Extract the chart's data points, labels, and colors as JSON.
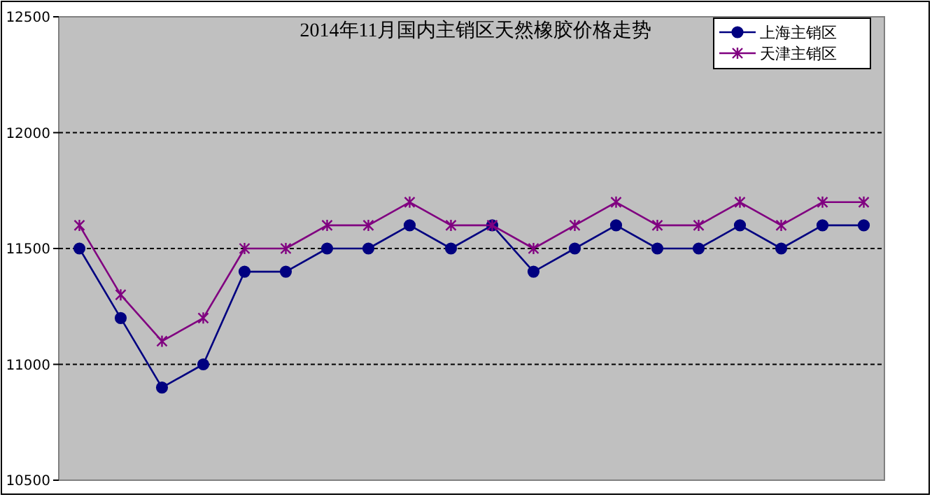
{
  "chart_data": {
    "type": "line",
    "title": "2014年11月国内主销区天然橡胶价格走势",
    "categories": [
      null,
      null,
      null,
      null,
      null,
      null,
      null,
      null,
      null,
      null,
      null,
      null,
      null,
      null,
      null,
      null,
      null,
      null,
      null,
      null
    ],
    "series": [
      {
        "name": "上海主销区",
        "color": "#000080",
        "marker": "circle",
        "values": [
          11500,
          11200,
          10900,
          11000,
          11400,
          11400,
          11500,
          11500,
          11600,
          11500,
          11600,
          11400,
          11500,
          11600,
          11500,
          11500,
          11600,
          11500,
          11600,
          11600
        ]
      },
      {
        "name": "天津主销区",
        "color": "#800080",
        "marker": "cross",
        "values": [
          11600,
          11300,
          11100,
          11200,
          11500,
          11500,
          11600,
          11600,
          11700,
          11600,
          11600,
          11500,
          11600,
          11700,
          11600,
          11600,
          11700,
          11600,
          11700,
          11700
        ]
      }
    ],
    "ylim": [
      10500,
      12500
    ],
    "yticks": [
      10500,
      11000,
      11500,
      12000,
      12500
    ],
    "grid": "y",
    "legend": "top right",
    "tick_labels": "y"
  }
}
